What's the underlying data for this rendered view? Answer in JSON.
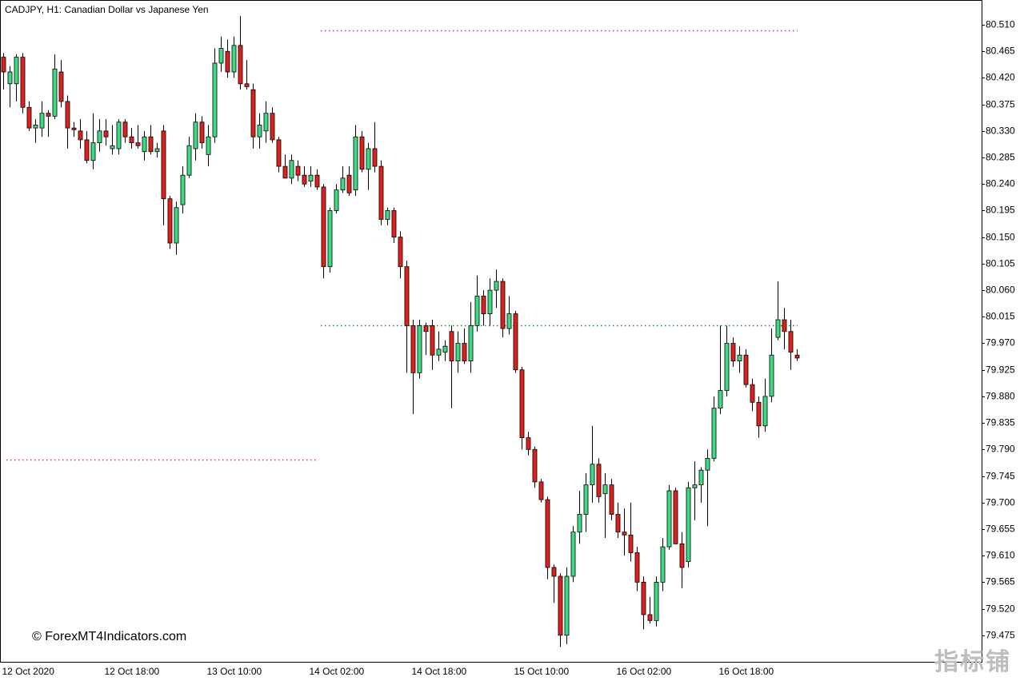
{
  "chart_data": {
    "type": "candlestick",
    "title": "CADJPY, H1:  Canadian Dollar vs Japanese Yen",
    "watermark": "© ForexMT4Indicators.com",
    "logo": "指标铺",
    "up_color": "#3ddc84",
    "down_color": "#e0201b",
    "categories": [
      "12 Oct 2020",
      null,
      null,
      null,
      null,
      null,
      null,
      null,
      null,
      null,
      null,
      null,
      null,
      null,
      null,
      null,
      "12 Oct 18:00",
      null,
      null,
      null,
      null,
      null,
      null,
      null,
      null,
      null,
      null,
      null,
      null,
      null,
      null,
      null,
      "13 Oct 10:00",
      null,
      null,
      null,
      null,
      null,
      null,
      null,
      null,
      null,
      null,
      null,
      null,
      null,
      null,
      null,
      "14 Oct 02:00",
      null,
      null,
      null,
      null,
      null,
      null,
      null,
      null,
      null,
      null,
      null,
      null,
      null,
      null,
      null,
      "14 Oct 18:00",
      null,
      null,
      null,
      null,
      null,
      null,
      null,
      null,
      null,
      null,
      null,
      null,
      null,
      null,
      null,
      "15 Oct 10:00",
      null,
      null,
      null,
      null,
      null,
      null,
      null,
      null,
      null,
      null,
      null,
      null,
      null,
      null,
      null,
      "16 Oct 02:00",
      null,
      null,
      null,
      null,
      null,
      null,
      null,
      null,
      null,
      null,
      null,
      null,
      null,
      null,
      null,
      "16 Oct 18:00",
      null,
      null,
      null,
      null,
      null,
      null,
      null,
      null,
      null,
      null,
      null,
      null
    ],
    "open": [
      80.455,
      80.41,
      80.41,
      80.455,
      80.37,
      80.335,
      80.335,
      80.36,
      80.355,
      80.43,
      80.38,
      80.335,
      80.33,
      80.315,
      80.28,
      80.31,
      80.33,
      80.3,
      80.3,
      80.345,
      80.32,
      80.31,
      80.295,
      80.32,
      80.295,
      80.33,
      80.215,
      80.14,
      80.205,
      80.255,
      80.3,
      80.345,
      80.29,
      80.32,
      80.445,
      80.465,
      80.43,
      80.475,
      80.41,
      80.4,
      80.32,
      80.33,
      80.36,
      80.315,
      80.27,
      80.25,
      80.27,
      80.255,
      80.245,
      80.255,
      80.235,
      80.1,
      80.195,
      80.23,
      80.255,
      80.23,
      80.32,
      80.265,
      80.3,
      80.27,
      80.18,
      80.195,
      80.15,
      80.1,
      80.0,
      79.92,
      80.0,
      80.0,
      79.95,
      79.955,
      79.99,
      79.94,
      79.97,
      79.94,
      80.0,
      80.05,
      80.02,
      80.06,
      80.075,
      79.995,
      80.02,
      79.925,
      79.81,
      79.79,
      79.735,
      79.705,
      79.59,
      79.575,
      79.475,
      79.575,
      79.65,
      79.68,
      79.73,
      79.765,
      79.715,
      79.73,
      79.68,
      79.65,
      79.645,
      79.615,
      79.565,
      79.51,
      79.5,
      79.565,
      79.625,
      79.72,
      79.63,
      79.6,
      79.725,
      79.73,
      79.755,
      79.775,
      79.86,
      79.89,
      79.97,
      79.94,
      79.95,
      79.9,
      79.87,
      79.83,
      79.88,
      79.98,
      80.01,
      79.99,
      79.95
    ],
    "high": [
      80.462,
      80.44,
      80.46,
      80.462,
      80.38,
      80.35,
      80.38,
      80.365,
      80.46,
      80.45,
      80.39,
      80.345,
      80.35,
      80.33,
      80.36,
      80.35,
      80.35,
      80.34,
      80.35,
      80.35,
      80.335,
      80.34,
      80.33,
      80.34,
      80.31,
      80.34,
      80.22,
      80.21,
      80.27,
      80.32,
      80.36,
      80.355,
      80.34,
      80.47,
      80.49,
      80.485,
      80.49,
      80.525,
      80.45,
      80.41,
      80.36,
      80.38,
      80.37,
      80.32,
      80.29,
      80.29,
      80.28,
      80.27,
      80.27,
      80.265,
      80.24,
      80.2,
      80.24,
      80.27,
      80.27,
      80.34,
      80.33,
      80.31,
      80.345,
      80.28,
      80.2,
      80.2,
      80.16,
      80.11,
      80.01,
      80.01,
      80.005,
      80.01,
      79.99,
      79.975,
      80.0,
      79.99,
      79.995,
      80.04,
      80.085,
      80.06,
      80.08,
      80.095,
      80.08,
      80.05,
      80.025,
      79.93,
      79.82,
      79.795,
      79.74,
      79.71,
      79.595,
      79.58,
      79.59,
      79.66,
      79.72,
      79.75,
      79.83,
      79.775,
      79.75,
      79.74,
      79.7,
      79.69,
      79.7,
      79.625,
      79.575,
      79.54,
      79.575,
      79.64,
      79.73,
      79.725,
      79.65,
      79.735,
      79.77,
      79.76,
      79.79,
      79.88,
      80.0,
      80.0,
      79.98,
      79.965,
      79.96,
      79.91,
      79.88,
      79.91,
      79.995,
      80.075,
      80.03,
      80.01,
      79.96
    ],
    "low": [
      80.4,
      80.37,
      80.38,
      80.36,
      80.33,
      80.31,
      80.32,
      80.32,
      80.35,
      80.37,
      80.3,
      80.32,
      80.3,
      80.275,
      80.265,
      80.295,
      80.305,
      80.29,
      80.29,
      80.31,
      80.3,
      80.3,
      80.28,
      80.29,
      80.285,
      80.17,
      80.13,
      80.12,
      80.19,
      80.25,
      80.28,
      80.3,
      80.27,
      80.31,
      80.43,
      80.42,
      80.42,
      80.4,
      80.4,
      80.3,
      80.3,
      80.31,
      80.31,
      80.26,
      80.25,
      80.24,
      80.245,
      80.235,
      80.235,
      80.23,
      80.08,
      80.09,
      80.19,
      80.225,
      80.22,
      80.22,
      80.26,
      80.23,
      80.26,
      80.17,
      80.17,
      80.14,
      80.08,
      79.92,
      79.85,
      79.91,
      79.95,
      79.925,
      79.94,
      79.94,
      79.86,
      79.92,
      79.935,
      79.92,
      79.99,
      80.0,
      80.0,
      80.03,
      79.98,
      79.985,
      79.92,
      79.79,
      79.78,
      79.725,
      79.7,
      79.57,
      79.53,
      79.455,
      79.46,
      79.565,
      79.63,
      79.65,
      79.7,
      79.7,
      79.64,
      79.67,
      79.64,
      79.61,
      79.6,
      79.55,
      79.485,
      79.495,
      79.49,
      79.55,
      79.62,
      79.63,
      79.555,
      79.59,
      79.67,
      79.7,
      79.66,
      79.77,
      79.85,
      79.88,
      79.93,
      79.92,
      79.895,
      79.855,
      79.81,
      79.82,
      79.87,
      79.975,
      79.96,
      79.925,
      79.94
    ],
    "close": [
      80.43,
      80.43,
      80.455,
      80.37,
      80.335,
      80.34,
      80.36,
      80.355,
      80.435,
      80.38,
      80.335,
      80.332,
      80.315,
      80.28,
      80.31,
      80.33,
      80.32,
      80.305,
      80.345,
      80.32,
      80.31,
      80.305,
      80.32,
      80.295,
      80.3,
      80.215,
      80.14,
      80.2,
      80.255,
      80.305,
      80.345,
      80.31,
      80.32,
      80.445,
      80.47,
      80.43,
      80.475,
      80.41,
      80.405,
      80.32,
      80.34,
      80.36,
      80.315,
      80.27,
      80.25,
      80.28,
      80.255,
      80.24,
      80.255,
      80.235,
      80.1,
      80.195,
      80.23,
      80.25,
      80.225,
      80.32,
      80.265,
      80.3,
      80.27,
      80.18,
      80.195,
      80.15,
      80.1,
      80.0,
      79.92,
      80.0,
      79.99,
      79.95,
      79.96,
      79.965,
      79.94,
      79.97,
      79.94,
      80.0,
      80.05,
      80.02,
      80.06,
      80.075,
      79.995,
      80.02,
      79.925,
      79.81,
      79.79,
      79.735,
      79.705,
      79.59,
      79.575,
      79.475,
      79.575,
      79.65,
      79.68,
      79.73,
      79.765,
      79.71,
      79.73,
      79.68,
      79.65,
      79.645,
      79.615,
      79.565,
      79.51,
      79.5,
      79.565,
      79.625,
      79.72,
      79.63,
      79.59,
      79.725,
      79.73,
      79.755,
      79.775,
      79.86,
      79.89,
      79.97,
      79.94,
      79.95,
      79.9,
      79.87,
      79.83,
      79.88,
      79.95,
      80.01,
      79.99,
      79.955,
      79.945
    ],
    "levels": [
      {
        "value": 80.5,
        "color": "#e03a3a"
      },
      {
        "value": 80.0,
        "color": "#2a8a2a"
      },
      {
        "value": 79.773,
        "color": "#e03a3a"
      }
    ],
    "ylim": [
      79.43,
      80.552
    ],
    "yticks": [
      {
        "value": 80.51,
        "label": "80.510"
      },
      80.465,
      {
        "value": 80.42,
        "label": "80.420"
      },
      80.375,
      {
        "value": 80.33,
        "label": "80.330"
      },
      80.285,
      {
        "value": 80.24,
        "label": "80.240"
      },
      80.195,
      {
        "value": 80.15,
        "label": "80.150"
      },
      80.105,
      {
        "value": 80.06,
        "label": "80.060"
      },
      80.015,
      {
        "value": 79.97,
        "label": "79.970"
      },
      79.925,
      {
        "value": 79.88,
        "label": "79.880"
      },
      79.835,
      {
        "value": 79.79,
        "label": "79.790"
      },
      79.745,
      {
        "value": 79.7,
        "label": "79.700"
      },
      79.655,
      {
        "value": 79.61,
        "label": "79.610"
      },
      79.565,
      {
        "value": 79.52,
        "label": "79.520"
      },
      79.475
    ]
  }
}
